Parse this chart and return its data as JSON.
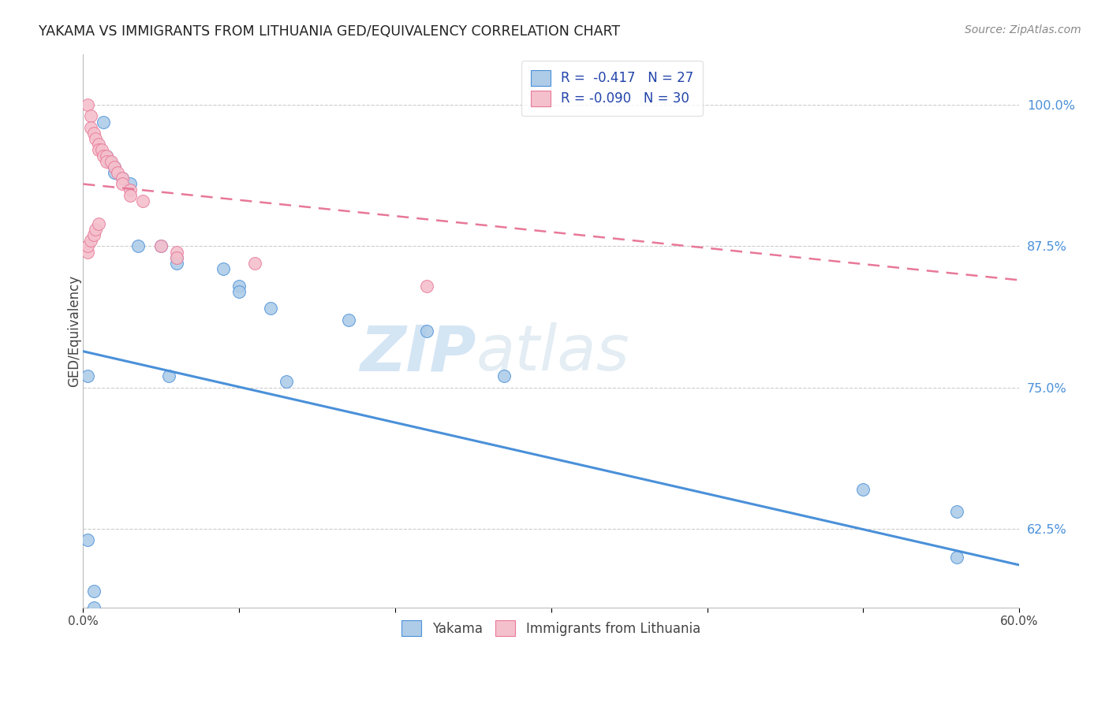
{
  "title": "YAKAMA VS IMMIGRANTS FROM LITHUANIA GED/EQUIVALENCY CORRELATION CHART",
  "source": "Source: ZipAtlas.com",
  "ylabel": "GED/Equivalency",
  "ytick_values": [
    0.625,
    0.75,
    0.875,
    1.0
  ],
  "xmin": 0.0,
  "xmax": 0.6,
  "ymin": 0.555,
  "ymax": 1.045,
  "legend_blue_r": "R =  -0.417",
  "legend_blue_n": "N = 27",
  "legend_pink_r": "R = -0.090",
  "legend_pink_n": "N = 30",
  "blue_color": "#aecce8",
  "blue_line_color": "#4a90d9",
  "pink_color": "#f4c0cc",
  "pink_line_color": "#e87898",
  "watermark_zip": "ZIP",
  "watermark_atlas": "atlas",
  "blue_line_x0": 0.0,
  "blue_line_y0": 0.782,
  "blue_line_x1": 0.6,
  "blue_line_y1": 0.593,
  "pink_line_x0": 0.0,
  "pink_line_y0": 0.93,
  "pink_line_x1": 0.6,
  "pink_line_y1": 0.845,
  "yakama_x": [
    0.003,
    0.007,
    0.007,
    0.013,
    0.015,
    0.017,
    0.02,
    0.02,
    0.025,
    0.03,
    0.035,
    0.05,
    0.06,
    0.06,
    0.09,
    0.1,
    0.1,
    0.12,
    0.17,
    0.22,
    0.27,
    0.003,
    0.055,
    0.13,
    0.5,
    0.56,
    0.56
  ],
  "yakama_y": [
    0.615,
    0.57,
    0.555,
    0.985,
    0.955,
    0.95,
    0.945,
    0.94,
    0.935,
    0.93,
    0.875,
    0.875,
    0.865,
    0.86,
    0.855,
    0.84,
    0.835,
    0.82,
    0.81,
    0.8,
    0.76,
    0.76,
    0.76,
    0.755,
    0.66,
    0.64,
    0.6
  ],
  "lithuania_x": [
    0.003,
    0.005,
    0.005,
    0.007,
    0.008,
    0.01,
    0.01,
    0.012,
    0.013,
    0.015,
    0.015,
    0.018,
    0.02,
    0.022,
    0.025,
    0.025,
    0.03,
    0.03,
    0.038,
    0.05,
    0.06,
    0.06,
    0.11,
    0.22,
    0.003,
    0.003,
    0.005,
    0.007,
    0.008,
    0.01
  ],
  "lithuania_y": [
    1.0,
    0.99,
    0.98,
    0.975,
    0.97,
    0.965,
    0.96,
    0.96,
    0.955,
    0.955,
    0.95,
    0.95,
    0.945,
    0.94,
    0.935,
    0.93,
    0.925,
    0.92,
    0.915,
    0.875,
    0.87,
    0.865,
    0.86,
    0.84,
    0.87,
    0.875,
    0.88,
    0.885,
    0.89,
    0.895
  ]
}
